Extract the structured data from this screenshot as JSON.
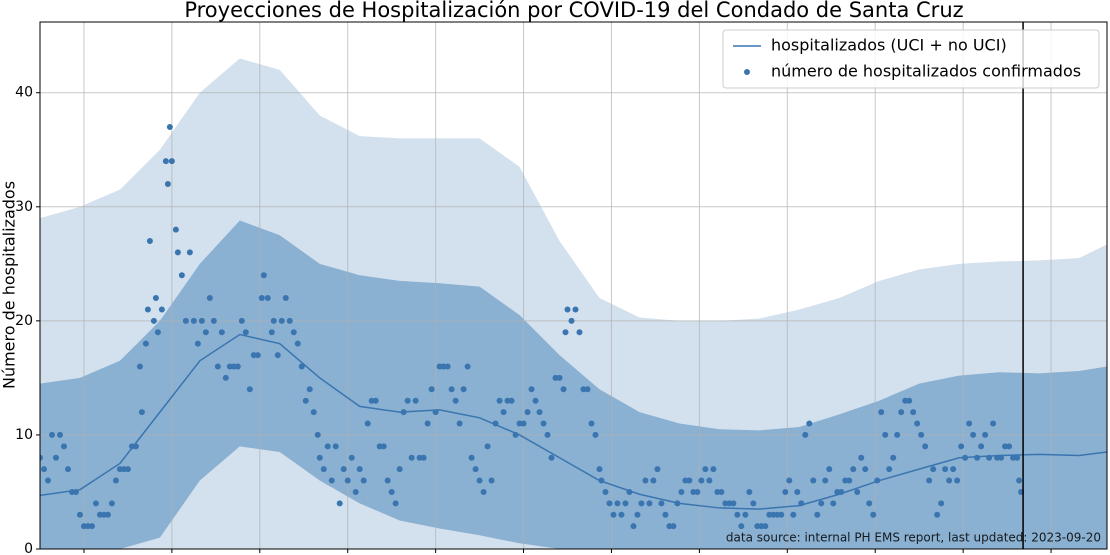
{
  "chart_data": {
    "type": "line",
    "title": "Proyecciones de Hospitalización por COVID-19 del Condado de Santa Cruz",
    "ylabel": "Número de hospitalizados",
    "annotation": "data source: internal PH EMS report, last updated: 2023-09-20",
    "xlim": [
      0,
      267
    ],
    "ylim": [
      0,
      46.2
    ],
    "xticks": [
      11,
      33,
      55,
      77,
      99,
      121,
      143,
      165,
      187,
      209,
      231,
      253
    ],
    "yticks": [
      0,
      10,
      20,
      30,
      40
    ],
    "grid": true,
    "legend": "upper right",
    "vline": 246,
    "x": [
      0,
      10,
      20,
      30,
      40,
      50,
      60,
      70,
      80,
      90,
      100,
      110,
      120,
      130,
      140,
      150,
      160,
      170,
      180,
      190,
      200,
      210,
      220,
      230,
      240,
      250,
      260,
      267
    ],
    "bands": [
      {
        "color": "#d3e0ed",
        "upper": [
          29,
          30,
          31.5,
          35,
          40,
          43,
          42,
          38,
          36.2,
          36,
          36,
          36,
          33.5,
          27,
          22,
          20.3,
          20,
          20,
          20.2,
          21,
          22,
          23.5,
          24.5,
          25,
          25.2,
          25.3,
          25.5,
          26.7
        ],
        "lower": [
          0,
          0,
          0,
          0,
          0,
          0,
          0,
          0,
          0,
          0,
          0,
          0,
          0,
          0,
          0,
          0,
          0,
          0,
          0,
          0,
          0,
          0,
          0,
          0,
          0,
          0,
          0,
          0
        ]
      },
      {
        "color": "#8ab0d2",
        "upper": [
          14.5,
          15,
          16.5,
          20,
          25,
          28.8,
          27.5,
          25,
          24,
          23.5,
          23.3,
          23,
          20.5,
          17,
          14,
          12,
          11,
          10.5,
          10.4,
          10.7,
          11.8,
          13,
          14.5,
          15.2,
          15.5,
          15.4,
          15.6,
          16
        ],
        "lower": [
          0,
          0,
          0,
          1,
          6,
          9,
          8.5,
          6,
          4,
          2.5,
          1.8,
          1.2,
          0.5,
          0,
          0,
          0,
          0,
          0,
          0,
          0,
          0,
          0,
          0,
          0,
          0,
          0,
          0,
          0
        ]
      }
    ],
    "series": [
      {
        "name": "hospitalizados (UCI + no UCI)",
        "type": "line",
        "color": "#3a75b0",
        "values": [
          4.7,
          5.2,
          7.5,
          12,
          16.5,
          18.8,
          18,
          15,
          12.5,
          12,
          12.2,
          11.5,
          10,
          8,
          6,
          4.8,
          4,
          3.6,
          3.5,
          3.8,
          4.8,
          6,
          7,
          8,
          8.2,
          8.3,
          8.2,
          8.5
        ]
      },
      {
        "name": "número de hospitalizados confirmados",
        "type": "scatter",
        "color": "#3a75b0",
        "x": [
          0,
          1,
          2,
          3,
          4,
          5,
          6,
          7,
          8,
          9,
          10,
          11,
          12,
          13,
          14,
          15,
          16,
          17,
          18,
          19,
          20,
          21,
          22,
          23,
          24,
          25,
          25.5,
          26.5,
          27,
          27.5,
          28.5,
          29,
          29.5,
          30.5,
          31.5,
          32,
          32.5,
          33,
          34,
          34.5,
          35.5,
          36.5,
          37.5,
          38.5,
          39.5,
          40.5,
          41.5,
          42.5,
          43.5,
          44.5,
          45.5,
          46.5,
          47.5,
          48.5,
          49.5,
          50.5,
          51.5,
          52.5,
          53.5,
          54.5,
          55.5,
          56,
          57,
          58,
          58.5,
          59.5,
          60.5,
          61.5,
          62.5,
          63.5,
          64.5,
          65.5,
          66.5,
          67.5,
          68.5,
          69.5,
          70,
          71,
          72,
          73,
          74,
          75,
          76,
          77,
          78,
          79,
          80,
          81,
          82,
          83,
          84,
          85,
          86,
          87,
          88,
          89,
          90,
          91,
          92,
          93,
          94,
          95,
          96,
          97,
          98,
          99,
          100,
          101,
          102,
          103,
          104,
          105,
          106,
          107,
          108,
          109,
          110,
          111,
          112,
          113,
          114,
          115,
          116,
          117,
          118,
          119,
          120,
          121,
          122,
          123,
          124,
          125,
          126,
          127,
          128,
          129,
          130,
          131,
          131.5,
          132,
          133,
          134,
          135,
          136,
          137,
          138,
          139,
          140,
          140.5,
          141.5,
          142.5,
          143.5,
          144.5,
          145.5,
          146.5,
          147.5,
          148.5,
          149.5,
          150.5,
          151.5,
          152.5,
          153.5,
          154.5,
          155.5,
          156.5,
          157.5,
          158.5,
          159.5,
          160.5,
          161.5,
          162.5,
          163.5,
          164.5,
          165.5,
          166.5,
          167.5,
          168.5,
          169.5,
          170.5,
          171.5,
          172.5,
          173.5,
          174.5,
          175.5,
          176.5,
          177.5,
          178.5,
          179.5,
          180.5,
          181.5,
          182.5,
          183.5,
          184.5,
          185.5,
          186.5,
          187.5,
          188.5,
          189.5,
          190.5,
          191.5,
          192.5,
          193.5,
          194.5,
          195.5,
          196.5,
          197.5,
          198.5,
          199.5,
          200.5,
          201.5,
          202.5,
          203.5,
          204.5,
          205.5,
          206.5,
          207.5,
          208.5,
          209.5,
          210.5,
          211.5,
          212.5,
          213.5,
          214.5,
          215.5,
          216.5,
          217.5,
          218.5,
          219.5,
          220.5,
          221.5,
          222.5,
          223.5,
          224.5,
          225.5,
          226.5,
          227.5,
          228.5,
          229.5,
          230.5,
          231.5,
          232.5,
          233.5,
          234.5,
          235.5,
          236.5,
          237.5,
          238.5,
          239.5,
          240.5,
          241.5,
          242.5,
          243.5,
          244.5,
          245,
          245.5
        ],
        "values": [
          8,
          7,
          6,
          10,
          8,
          10,
          9,
          7,
          5,
          5,
          3,
          2,
          2,
          2,
          4,
          3,
          3,
          3,
          4,
          6,
          7,
          7,
          7,
          9,
          9,
          16,
          12,
          18,
          21,
          27,
          20,
          22,
          19,
          21,
          34,
          32,
          37,
          34,
          28,
          26,
          24,
          20,
          26,
          20,
          18,
          20,
          19,
          22,
          20,
          16,
          19,
          15,
          16,
          16,
          16,
          20,
          19,
          14,
          17,
          17,
          22,
          24,
          22,
          19,
          20,
          17,
          20,
          22,
          20,
          19,
          18,
          16,
          13,
          14,
          12,
          10,
          8,
          7,
          9,
          6,
          9,
          4,
          7,
          6,
          8,
          5,
          7,
          6,
          11,
          13,
          13,
          9,
          9,
          6,
          5,
          4,
          7,
          12,
          13,
          8,
          13,
          8,
          8,
          11,
          14,
          12,
          16,
          16,
          16,
          14,
          13,
          11,
          14,
          16,
          8,
          7,
          6,
          5,
          9,
          6,
          11,
          13,
          12,
          13,
          13,
          10,
          11,
          11,
          12,
          14,
          13,
          12,
          11,
          10,
          8,
          15,
          15,
          14,
          19,
          21,
          20,
          21,
          19,
          14,
          14,
          11,
          10,
          7,
          6,
          5,
          4,
          3,
          4,
          3,
          4,
          5,
          2,
          3,
          4,
          6,
          4,
          6,
          7,
          4,
          3,
          2,
          2,
          4,
          5,
          6,
          6,
          5,
          5,
          6,
          7,
          6,
          7,
          5,
          5,
          4,
          4,
          4,
          3,
          2,
          3,
          5,
          4,
          2,
          2,
          2,
          3,
          3,
          3,
          3,
          5,
          6,
          3,
          5,
          4,
          10,
          11,
          6,
          3,
          4,
          6,
          7,
          4,
          5,
          5,
          6,
          6,
          7,
          5,
          8,
          7,
          4,
          3,
          6,
          12,
          10,
          7,
          8,
          10,
          12,
          13,
          13,
          12,
          11,
          10,
          9,
          6,
          7,
          3,
          4,
          7,
          6,
          7,
          6,
          9,
          8,
          11,
          10,
          8,
          9,
          10,
          8,
          11,
          8,
          8,
          9,
          9,
          8,
          8,
          6,
          5
        ]
      }
    ]
  }
}
